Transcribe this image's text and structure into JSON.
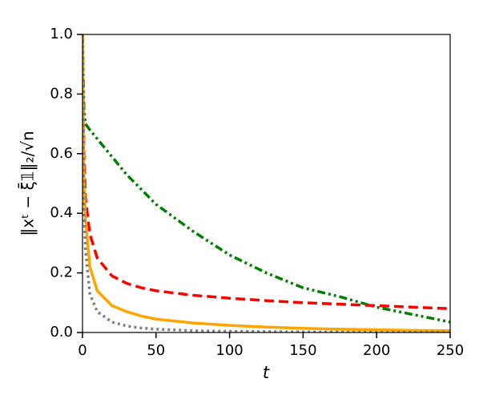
{
  "chart_data": {
    "type": "line",
    "xlabel": "t",
    "ylabel": "‖xᵗ − ξ̄𝟙‖₂/√n",
    "x": [
      0,
      1,
      2,
      5,
      10,
      20,
      30,
      40,
      50,
      75,
      100,
      125,
      150,
      175,
      200,
      225,
      250
    ],
    "series": [
      {
        "color": "#008000",
        "linestyle": "dashdotdot",
        "values": [
          1.0,
          0.75,
          0.7,
          0.68,
          0.65,
          0.59,
          0.53,
          0.48,
          0.43,
          0.34,
          0.26,
          0.2,
          0.15,
          0.12,
          0.085,
          0.06,
          0.035
        ]
      },
      {
        "color": "#ff0000",
        "linestyle": "dashed",
        "values": [
          1.0,
          0.6,
          0.45,
          0.33,
          0.25,
          0.19,
          0.165,
          0.15,
          0.14,
          0.125,
          0.115,
          0.107,
          0.1,
          0.095,
          0.09,
          0.085,
          0.08
        ]
      },
      {
        "color": "#ffa500",
        "linestyle": "solid",
        "values": [
          1.0,
          0.5,
          0.38,
          0.22,
          0.14,
          0.09,
          0.07,
          0.055,
          0.045,
          0.032,
          0.024,
          0.018,
          0.014,
          0.011,
          0.009,
          0.007,
          0.006
        ]
      },
      {
        "color": "#808080",
        "linestyle": "dotted",
        "values": [
          1.0,
          0.42,
          0.28,
          0.13,
          0.07,
          0.035,
          0.022,
          0.015,
          0.011,
          0.006,
          0.004,
          0.003,
          0.002,
          0.0015,
          0.001,
          0.001,
          0.001
        ]
      }
    ],
    "xlim": [
      0,
      250
    ],
    "xticks": [
      0,
      50,
      100,
      150,
      200,
      250
    ],
    "ylim": [
      0,
      1.0
    ],
    "yticks": [
      {
        "value": 0,
        "label": "0.0"
      },
      {
        "value": 0.2,
        "label": "0.2"
      },
      {
        "value": 0.4,
        "label": "0.4"
      },
      {
        "value": 0.6,
        "label": "0.6"
      },
      {
        "value": 0.8,
        "label": "0.8"
      },
      {
        "value": 1.0,
        "label": "1.0"
      }
    ],
    "grid": false
  }
}
